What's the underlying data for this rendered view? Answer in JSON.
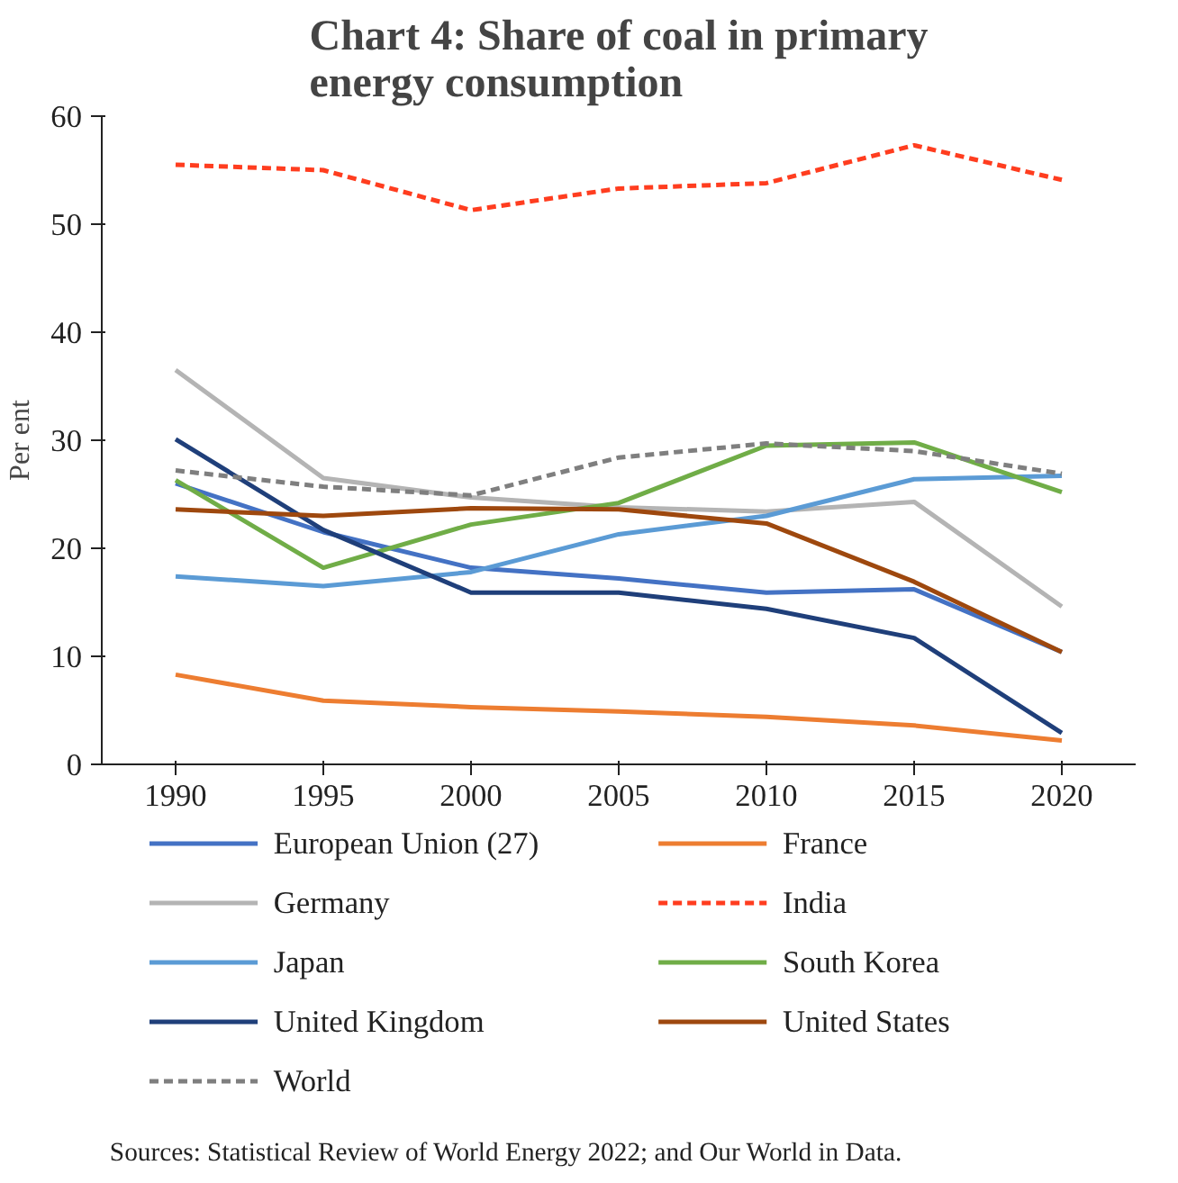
{
  "chart_data": {
    "type": "line",
    "title": "Chart 4: Share of coal in primary\nenergy consumption",
    "ylabel": "Per ent",
    "categories": [
      "1990",
      "1995",
      "2000",
      "2005",
      "2010",
      "2015",
      "2020"
    ],
    "ylim": [
      0,
      60
    ],
    "yticks": [
      0,
      10,
      20,
      30,
      40,
      50,
      60
    ],
    "grid": false,
    "legend": "bottom",
    "line_style": "solid",
    "series": [
      {
        "name": "European Union (27)",
        "color": "#4472c4",
        "values": [
          26.0,
          21.5,
          18.2,
          17.2,
          15.9,
          16.2,
          10.4
        ]
      },
      {
        "name": "France",
        "color": "#ed7d31",
        "values": [
          8.3,
          5.9,
          5.3,
          4.9,
          4.4,
          3.6,
          2.2
        ]
      },
      {
        "name": "Germany",
        "color": "#b4b4b4",
        "values": [
          36.5,
          26.5,
          24.7,
          23.8,
          23.4,
          24.3,
          14.6
        ]
      },
      {
        "name": "India",
        "color": "#ff3d1f",
        "line_style": "dashed",
        "values": [
          55.5,
          55.0,
          51.3,
          53.3,
          53.8,
          57.3,
          54.1
        ]
      },
      {
        "name": "Japan",
        "color": "#5b9bd5",
        "values": [
          17.4,
          16.5,
          17.8,
          21.3,
          23.0,
          26.4,
          26.7
        ]
      },
      {
        "name": "South Korea",
        "color": "#70ad47",
        "values": [
          26.3,
          18.2,
          22.2,
          24.2,
          29.5,
          29.8,
          25.2
        ]
      },
      {
        "name": "United Kingdom",
        "color": "#1f3f7a",
        "values": [
          30.1,
          21.7,
          15.9,
          15.9,
          14.4,
          11.7,
          2.9
        ]
      },
      {
        "name": "United States",
        "color": "#9e480e",
        "values": [
          23.6,
          23.0,
          23.7,
          23.6,
          22.3,
          16.9,
          10.4
        ]
      },
      {
        "name": "World",
        "color": "#7f7f7f",
        "line_style": "dashed",
        "values": [
          27.2,
          25.7,
          24.9,
          28.4,
          29.7,
          29.0,
          26.9
        ]
      }
    ],
    "annotations": [
      "Sources: Statistical Review of World Energy 2022; and Our World in Data."
    ]
  }
}
